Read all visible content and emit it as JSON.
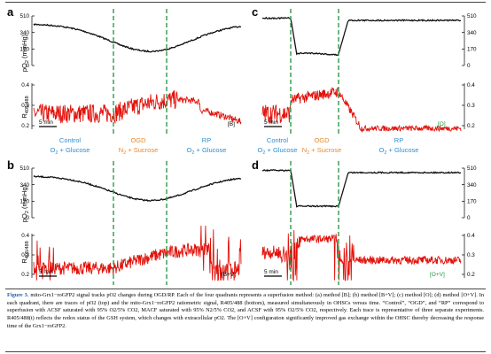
{
  "panels": [
    {
      "letter": "a",
      "label_top": "pO",
      "label_top_sub": "2",
      "label_top_unit": " (mmHg)",
      "label_bottom": "R",
      "label_bottom_sub": "405/488",
      "ticks_top": [
        "510",
        "340",
        "170",
        "0"
      ],
      "ticks_bottom": [
        "0.4",
        "0.3",
        "0.2"
      ],
      "tick_side": "left",
      "scalebar": "5 min",
      "method": "[B]",
      "method_color": "#000000"
    },
    {
      "letter": "b",
      "label_top": "pO",
      "label_top_sub": "2",
      "label_top_unit": " (mmHg)",
      "label_bottom": "R",
      "label_bottom_sub": "405/488",
      "ticks_top": [
        "510",
        "340",
        "170",
        "0"
      ],
      "ticks_bottom": [
        "0.4",
        "0.3",
        "0.2"
      ],
      "tick_side": "left",
      "scalebar": "5 min",
      "method": "[B+V]",
      "method_color": "#000000"
    },
    {
      "letter": "c",
      "ticks_top": [
        "510",
        "340",
        "170",
        "0"
      ],
      "ticks_bottom": [
        "0.4",
        "0.3",
        "0.2"
      ],
      "tick_side": "right",
      "scalebar": "5 min",
      "method": "[O]",
      "method_color": "#1a9a3a"
    },
    {
      "letter": "d",
      "ticks_top": [
        "510",
        "340",
        "170",
        "0"
      ],
      "ticks_bottom": [
        "0.4",
        "0.3",
        "0.2"
      ],
      "tick_side": "right",
      "scalebar": "5 min",
      "method": "[O+V]",
      "method_color": "#1a9a3a"
    }
  ],
  "conditions": [
    {
      "name": "Control",
      "desc": "O",
      "desc_sub": "2",
      "desc_rest": " + Glucose",
      "color": "#2a8fd0"
    },
    {
      "name": "OGD",
      "desc": "N",
      "desc_sub": "2",
      "desc_rest": " + Sucrose",
      "color": "#e8892b"
    },
    {
      "name": "RP",
      "desc": "O",
      "desc_sub": "2",
      "desc_rest": " + Glucose",
      "color": "#2a8fd0"
    }
  ],
  "colors": {
    "po2_trace": "#111111",
    "ratio_trace": "#e3120b",
    "divider": "#2e9a4a",
    "caption_label": "#1f5fa8"
  },
  "caption": {
    "label": "Figure 3.",
    "text": "mito-Grx1−roGFP2 signal tracks pO2 changes during OGD/RP. Each of the four quadrants represents a superfusion method: (a) method [B]; (b) method [B+V]; (c) method [O]; (d) method [O+V]. In each quadrant, there are traces of pO2 (top) and the mito-Grx1−roGFP2 ratiometric signal, R405/488 (bottom), measured simultaneously in OHSCs versus time. “Control”, “OGD”, and “RP” correspond to superfusion with ACSF saturated with 95% O2/5% CO2, MACF saturated with 95% N2/5% CO2, and ACSF with 95% O2/5% CO2, respectively. Each trace is representative of three separate experiments. R405/488(t) reflects the redox status of the GSH system, which changes with extracellular pO2. The [O+V] configuration significantly improved gas exchange within the OHSC thereby decreasing the response time of the Grx1−roGFP2."
  }
}
